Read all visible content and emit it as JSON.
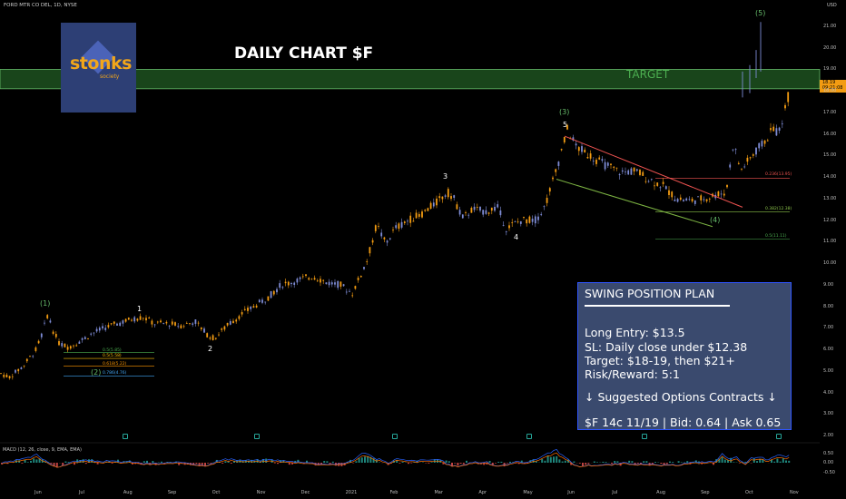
{
  "header": {
    "symbol_line": "FORD MTR CO DEL, 1D, NYSE",
    "currency": "USD"
  },
  "logo": {
    "word": "stonks",
    "sub": "society"
  },
  "chart_title": "DAILY CHART $F",
  "target_label": "TARGET",
  "colors": {
    "target_zone": "#2e7d32",
    "channel_top": "#ef5350",
    "channel_bottom": "#7cb342",
    "box_border": "#2f55ff",
    "candle": "#f39c12",
    "candle_alt": "#7e8cd6"
  },
  "plan": {
    "title": "SWING POSITION PLAN",
    "entry": "Long Entry: $13.5",
    "sl": "SL: Daily close under $12.38",
    "target": "Target: $18-19, then $21+",
    "rr": "Risk/Reward: 5:1",
    "options_header": "↓ Suggested Options Contracts ↓",
    "contract": "$F 14c 11/19 | Bid: 0.64 | Ask 0.65"
  },
  "price_tag": {
    "value": "18.19",
    "sub": "09:21:08"
  },
  "macd_label": "MACD (12, 26, close, 9, EMA, EMA)",
  "macd_ticks": [
    "0.50",
    "0.00",
    "-0.50"
  ],
  "chart_data": {
    "type": "candlestick",
    "y_axis_ticks": [
      "21.00",
      "20.00",
      "19.00",
      "18.00",
      "17.00",
      "16.00",
      "15.00",
      "14.00",
      "13.00",
      "12.00",
      "11.00",
      "10.00",
      "9.00",
      "8.00",
      "7.00",
      "6.00",
      "5.00",
      "4.00",
      "3.00",
      "2.00"
    ],
    "x_axis_ticks": [
      "Jun",
      "Jul",
      "Aug",
      "Sep",
      "Oct",
      "Nov",
      "Dec",
      "2021",
      "Feb",
      "Mar",
      "Apr",
      "May",
      "Jun",
      "Jul",
      "Aug",
      "Sep",
      "Oct",
      "Nov"
    ],
    "ylim": [
      2,
      21.8
    ],
    "waypoints": [
      [
        0,
        4.9
      ],
      [
        10,
        4.7
      ],
      [
        25,
        5.2
      ],
      [
        40,
        6.0
      ],
      [
        47,
        6.8
      ],
      [
        53,
        7.7
      ],
      [
        57,
        7.0
      ],
      [
        65,
        6.3
      ],
      [
        75,
        6.1
      ],
      [
        85,
        6.3
      ],
      [
        100,
        6.7
      ],
      [
        115,
        7.0
      ],
      [
        130,
        7.2
      ],
      [
        145,
        7.4
      ],
      [
        158,
        7.5
      ],
      [
        170,
        7.2
      ],
      [
        185,
        7.2
      ],
      [
        200,
        7.1
      ],
      [
        215,
        7.3
      ],
      [
        228,
        6.7
      ],
      [
        236,
        6.5
      ],
      [
        250,
        7.1
      ],
      [
        265,
        7.6
      ],
      [
        280,
        8.0
      ],
      [
        295,
        8.4
      ],
      [
        310,
        9.0
      ],
      [
        320,
        9.1
      ],
      [
        335,
        9.3
      ],
      [
        345,
        9.4
      ],
      [
        360,
        9.1
      ],
      [
        375,
        9.0
      ],
      [
        388,
        8.6
      ],
      [
        398,
        9.5
      ],
      [
        405,
        10.2
      ],
      [
        415,
        11.8
      ],
      [
        425,
        10.9
      ],
      [
        435,
        11.6
      ],
      [
        450,
        12.0
      ],
      [
        465,
        12.3
      ],
      [
        480,
        12.8
      ],
      [
        493,
        13.3
      ],
      [
        500,
        13.0
      ],
      [
        510,
        12.1
      ],
      [
        520,
        12.5
      ],
      [
        535,
        12.4
      ],
      [
        548,
        12.6
      ],
      [
        558,
        11.6
      ],
      [
        565,
        11.8
      ],
      [
        575,
        12.0
      ],
      [
        590,
        12.0
      ],
      [
        600,
        12.6
      ],
      [
        612,
        14.2
      ],
      [
        625,
        16.2
      ],
      [
        635,
        15.4
      ],
      [
        650,
        15.0
      ],
      [
        665,
        14.6
      ],
      [
        685,
        14.2
      ],
      [
        700,
        14.3
      ],
      [
        715,
        13.9
      ],
      [
        730,
        13.6
      ],
      [
        745,
        13.0
      ],
      [
        760,
        12.9
      ],
      [
        775,
        13.0
      ],
      [
        790,
        13.2
      ],
      [
        800,
        13.3
      ],
      [
        808,
        15.6
      ],
      [
        816,
        14.3
      ],
      [
        825,
        14.8
      ],
      [
        835,
        15.3
      ],
      [
        845,
        15.8
      ],
      [
        852,
        16.3
      ],
      [
        858,
        16.0
      ],
      [
        865,
        17.2
      ],
      [
        870,
        18.0
      ]
    ],
    "spikes": [
      {
        "x": 818,
        "high": 18.9,
        "low": 17.7
      },
      {
        "x": 826,
        "high": 19.2,
        "low": 17.9
      },
      {
        "x": 833,
        "high": 19.9,
        "low": 18.6
      },
      {
        "x": 838,
        "high": 21.2,
        "low": 18.9
      }
    ],
    "target_zone": [
      18.1,
      19.0
    ],
    "channel_top": {
      "from": {
        "x": 622,
        "y": 15.9
      },
      "to": {
        "x": 818,
        "y": 12.6
      }
    },
    "channel_bottom": {
      "from": {
        "x": 613,
        "y": 13.9
      },
      "to": {
        "x": 785,
        "y": 11.7
      }
    },
    "fib_levels_right": [
      {
        "label": "0.236(13.95)",
        "value": 13.95,
        "color": "#ef5350"
      },
      {
        "label": "0.382(12.38)",
        "value": 12.38,
        "color": "#8bc34a"
      },
      {
        "label": "0.5(11.11)",
        "value": 11.11,
        "color": "#4caf50"
      }
    ],
    "fib_levels_left": [
      {
        "label": "0.5(5.85)",
        "value": 5.85,
        "color": "#4caf50"
      },
      {
        "label": "0.5(5.58)",
        "value": 5.58,
        "color": "#ffc107"
      },
      {
        "label": "0.618(5.22)",
        "value": 5.22,
        "color": "#ff9800"
      },
      {
        "label": "0.786(4.76)",
        "value": 4.76,
        "color": "#42a5f5"
      }
    ],
    "wave_labels": [
      {
        "text": "(1)",
        "x": 48,
        "y": 8.1,
        "color": "green"
      },
      {
        "text": "(2)",
        "x": 104,
        "y": 4.9,
        "color": "green"
      },
      {
        "text": "1",
        "x": 155,
        "y": 7.85,
        "color": "white"
      },
      {
        "text": "2",
        "x": 233,
        "y": 6.0,
        "color": "white"
      },
      {
        "text": "3",
        "x": 492,
        "y": 14.0,
        "color": "white"
      },
      {
        "text": "4",
        "x": 570,
        "y": 11.2,
        "color": "white"
      },
      {
        "text": "(3)",
        "x": 620,
        "y": 17.0,
        "color": "green"
      },
      {
        "text": "5",
        "x": 624,
        "y": 16.4,
        "color": "white"
      },
      {
        "text": "(4)",
        "x": 786,
        "y": 12.0,
        "color": "green"
      },
      {
        "text": "(5)",
        "x": 836,
        "y": 21.6,
        "color": "green"
      }
    ]
  }
}
